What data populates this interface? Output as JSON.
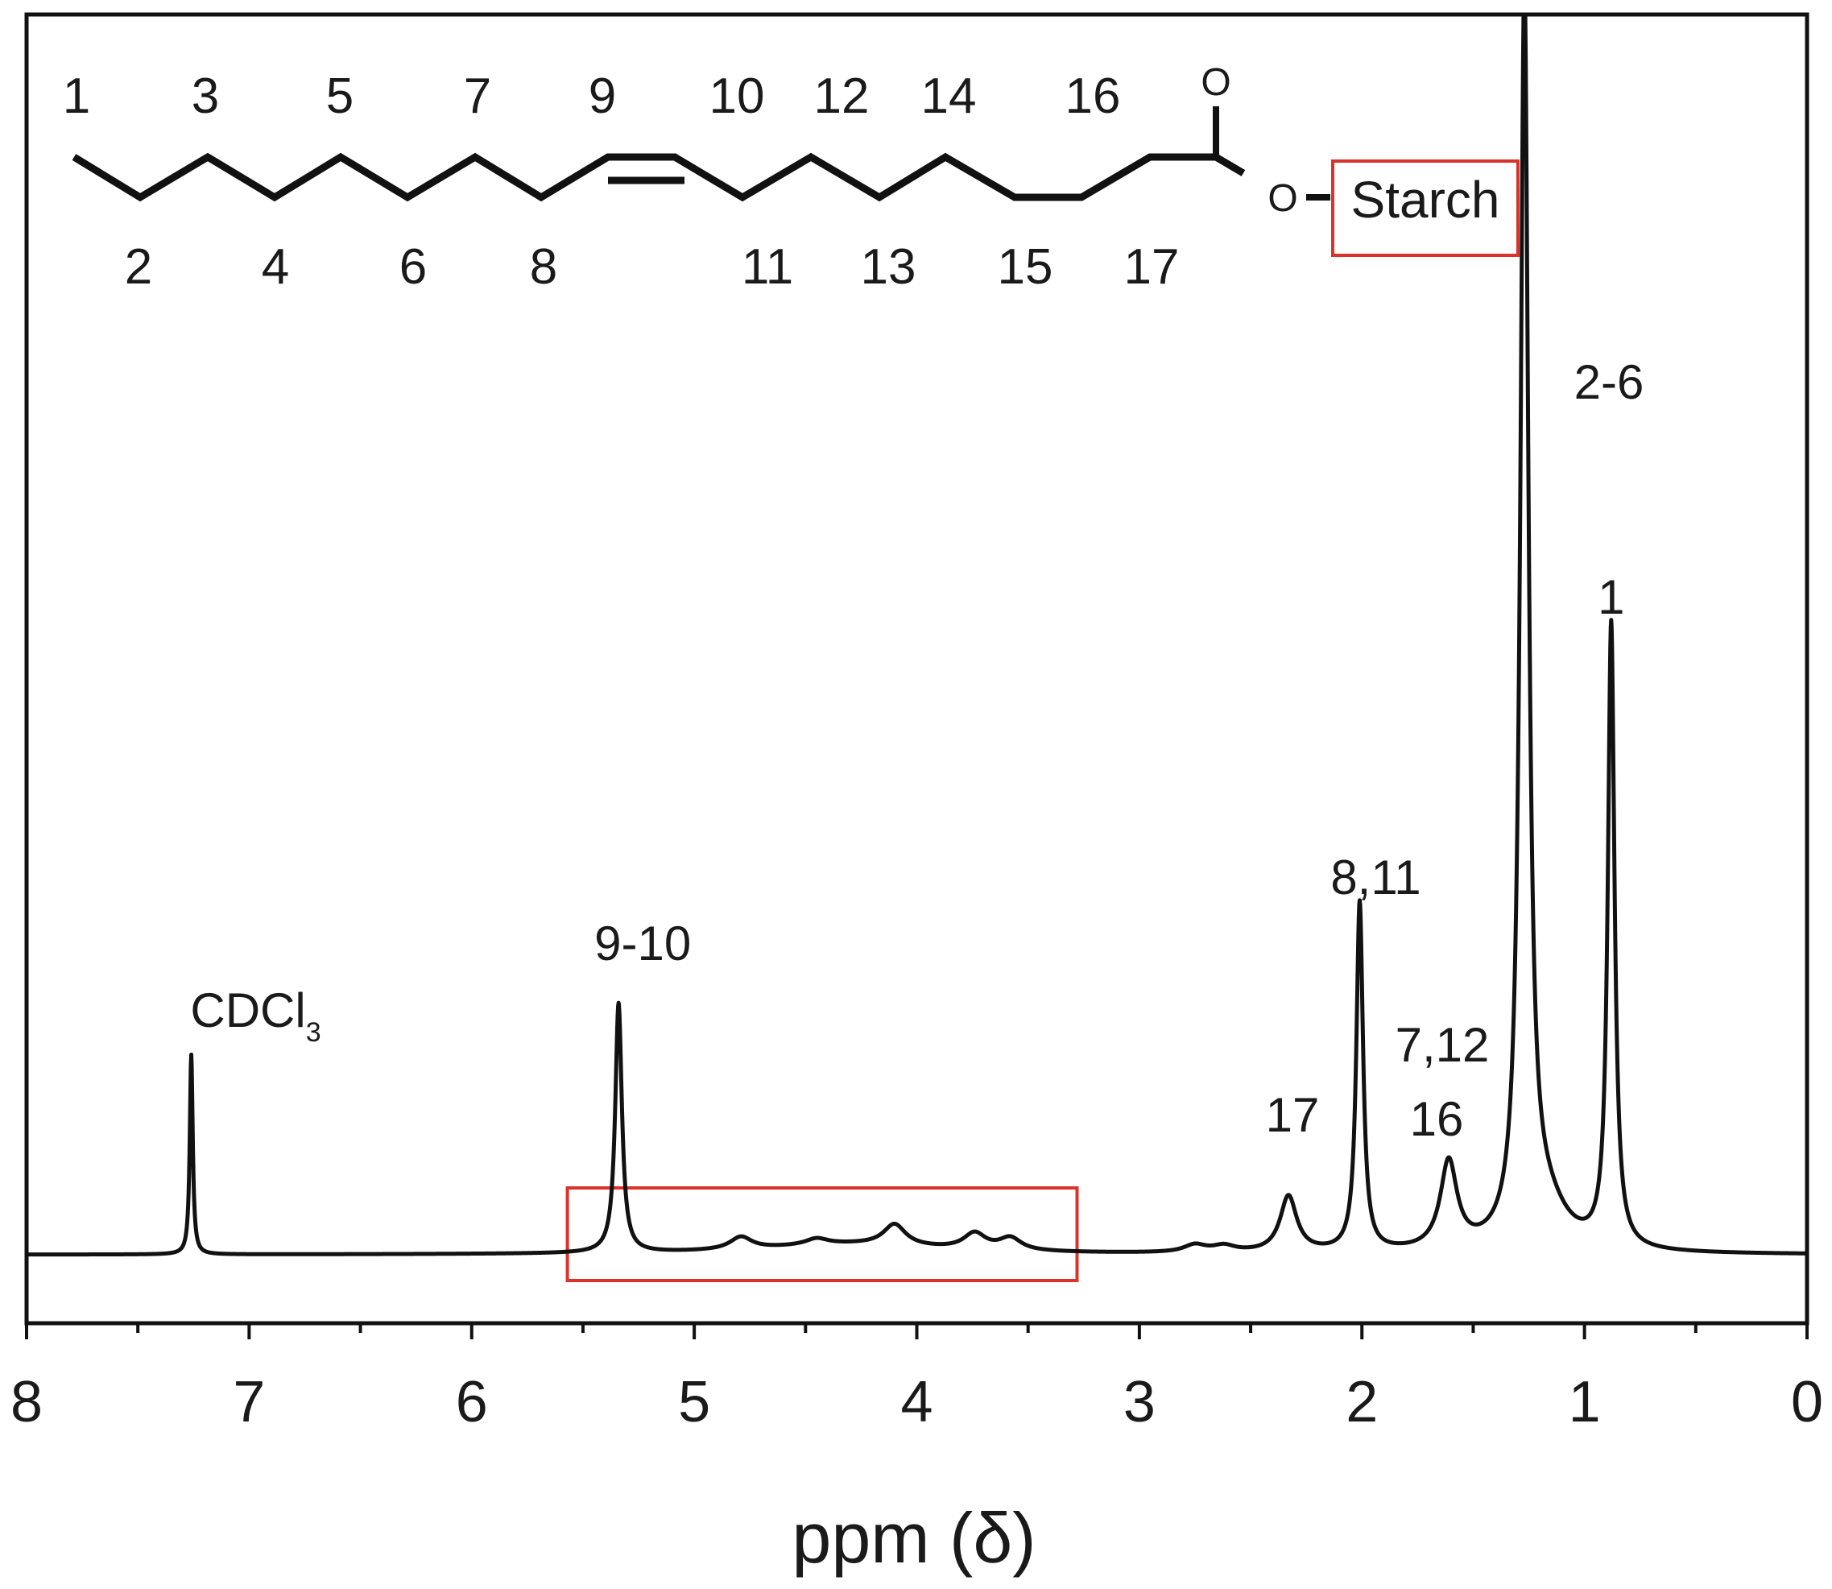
{
  "chart_data": {
    "type": "line",
    "title": "",
    "xlabel": "ppm (δ)",
    "ylabel": "",
    "xlim": [
      8,
      0
    ],
    "x_reversed": true,
    "x_ticks": [
      "8",
      "7",
      "6",
      "5",
      "4",
      "3",
      "2",
      "1",
      "0"
    ],
    "grid": false,
    "legend": "none",
    "series": [
      {
        "peaks": [
          {
            "shift": 7.26,
            "height": 0.16,
            "label": "CDCl",
            "label_sub": "3"
          },
          {
            "shift": 5.34,
            "height": 0.2,
            "label": "9-10"
          },
          {
            "shift": 2.33,
            "height": 0.045,
            "label": "17"
          },
          {
            "shift": 2.01,
            "height": 0.28,
            "label": "8,11"
          },
          {
            "shift": 1.61,
            "height": 0.07,
            "label": "7,12"
          },
          {
            "shift": 1.61,
            "height": 0.07,
            "label": "16"
          },
          {
            "shift": 1.27,
            "height": 1.0,
            "label": "2-6"
          },
          {
            "shift": 0.88,
            "height": 0.5,
            "label": "1"
          }
        ],
        "minor_peaks": [
          {
            "shift": 4.79,
            "height": 0.01
          },
          {
            "shift": 4.45,
            "height": 0.005
          },
          {
            "shift": 4.1,
            "height": 0.017
          },
          {
            "shift": 3.74,
            "height": 0.013
          },
          {
            "shift": 3.58,
            "height": 0.01
          },
          {
            "shift": 2.75,
            "height": 0.006
          },
          {
            "shift": 2.62,
            "height": 0.005
          }
        ]
      }
    ],
    "highlight_region": {
      "from": 5.57,
      "to": 3.28,
      "color": "#d9332b"
    }
  },
  "structure": {
    "atom_numbers_top": [
      "1",
      "3",
      "5",
      "7",
      "9",
      "10",
      "12",
      "14",
      "16"
    ],
    "atom_numbers_bottom": [
      "2",
      "4",
      "6",
      "8",
      "11",
      "13",
      "15",
      "17"
    ],
    "carbonyl_oxygen": "O",
    "ester_oxygen": "O",
    "substituent": "Starch",
    "highlight_color": "#d9332b"
  },
  "colors": {
    "spectrum": "#111111",
    "highlight": "#d9332b"
  }
}
